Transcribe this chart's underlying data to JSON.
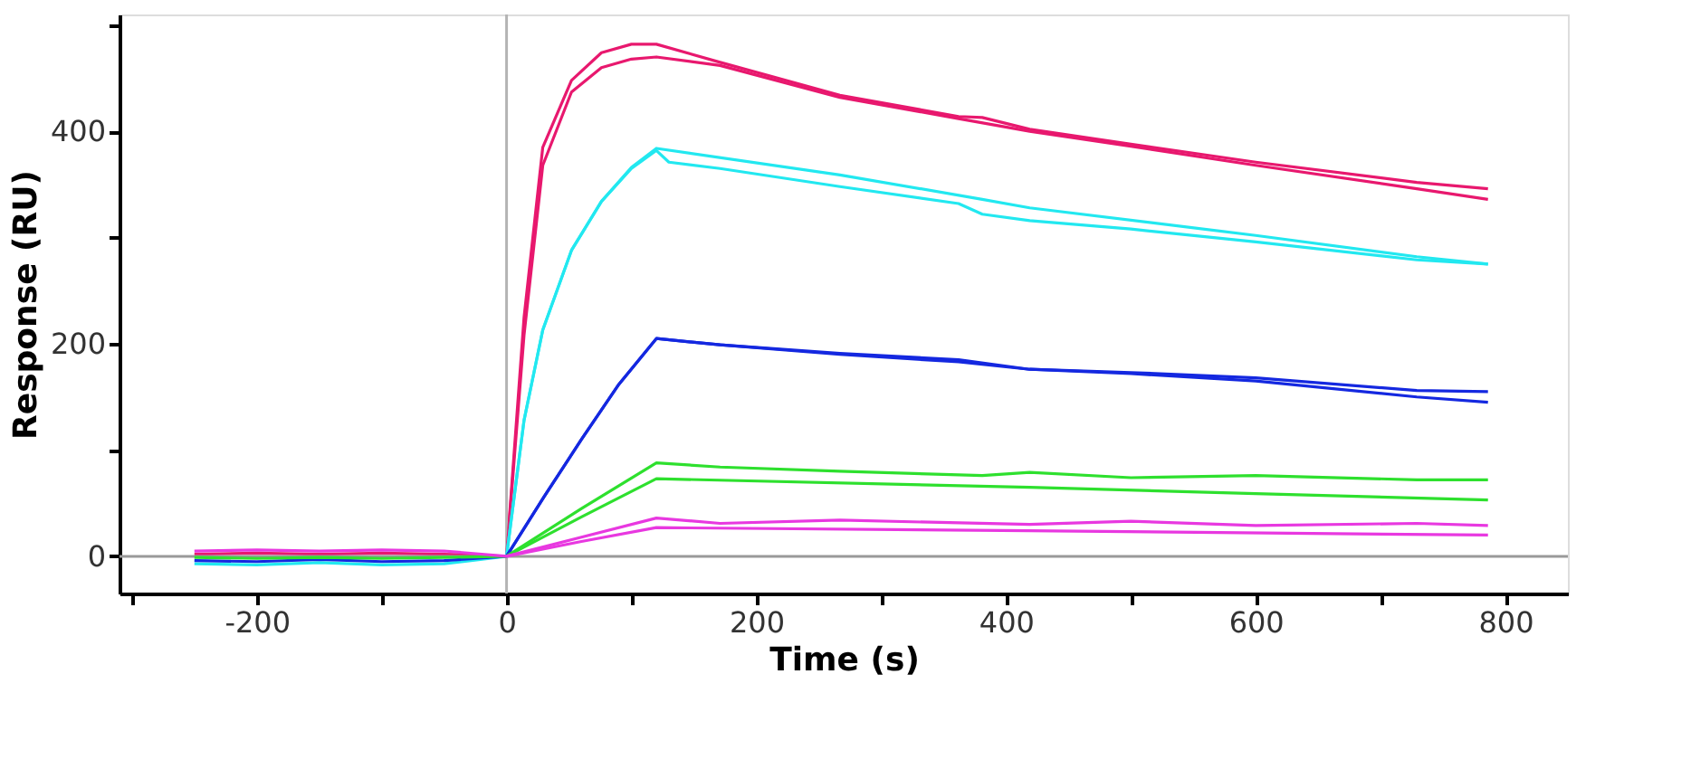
{
  "chart_data": {
    "type": "line",
    "xlabel": "Time (s)",
    "ylabel": "Response (RU)",
    "xlim": [
      -310,
      850
    ],
    "ylim": [
      -35,
      510
    ],
    "xticks": [
      {
        "value": -300,
        "label": null
      },
      -200,
      {
        "value": -100,
        "label": null
      },
      0,
      {
        "value": 100,
        "label": null
      },
      200,
      {
        "value": 300,
        "label": null
      },
      400,
      {
        "value": 500,
        "label": null
      },
      600,
      {
        "value": 700,
        "label": null
      },
      800
    ],
    "yticks": [
      0,
      {
        "value": 100,
        "label": null
      },
      200,
      {
        "value": 300,
        "label": null
      },
      400,
      {
        "value": 500,
        "label": null
      }
    ],
    "grid": false,
    "marker": "none",
    "line_style": "solid",
    "ref_lines": [
      {
        "axis": "x",
        "value": 0,
        "label": null,
        "color": "#b4b4b4"
      },
      {
        "axis": "y",
        "value": 0,
        "label": null,
        "color": "#999999"
      }
    ],
    "series": [
      {
        "color": "#e8186e",
        "x": [
          -250,
          -200,
          -150,
          -100,
          -50,
          0,
          14,
          29,
          52,
          76,
          100,
          120,
          171,
          267,
          362,
          381,
          419,
          500,
          600,
          729,
          786
        ],
        "values": [
          2,
          3,
          2,
          3,
          2,
          0,
          225,
          385,
          448,
          474,
          482,
          482,
          465,
          434,
          414,
          413,
          402,
          388,
          371,
          352,
          346
        ]
      },
      {
        "color": "#e8186e",
        "x": [
          0,
          14,
          29,
          52,
          76,
          100,
          120,
          171,
          267,
          362,
          419,
          500,
          600,
          729,
          786
        ],
        "values": [
          0,
          208,
          368,
          437,
          460,
          468,
          470,
          462,
          432,
          412,
          400,
          386,
          368,
          346,
          336
        ]
      },
      {
        "color": "#22e8f0",
        "x": [
          -250,
          -200,
          -150,
          -100,
          -50,
          0,
          14,
          29,
          52,
          76,
          100,
          120,
          130,
          171,
          267,
          362,
          381,
          419,
          500,
          600,
          729,
          786
        ],
        "values": [
          -7,
          -8,
          -6,
          -8,
          -7,
          0,
          128,
          213,
          288,
          334,
          365,
          382,
          371,
          365,
          348,
          332,
          322,
          316,
          308,
          296,
          279,
          275
        ]
      },
      {
        "color": "#22e8f0",
        "x": [
          0,
          14,
          29,
          52,
          76,
          100,
          120,
          267,
          381,
          419,
          600,
          729,
          786
        ],
        "values": [
          0,
          128,
          213,
          288,
          334,
          366,
          384,
          359,
          336,
          328,
          302,
          282,
          275
        ]
      },
      {
        "color": "#1428e0",
        "x": [
          -250,
          -200,
          -150,
          -100,
          -50,
          0,
          30,
          60,
          90,
          120,
          171,
          267,
          362,
          419,
          500,
          600,
          729,
          786
        ],
        "values": [
          -4,
          -5,
          -3,
          -5,
          -4,
          0,
          56,
          110,
          162,
          205,
          199,
          191,
          185,
          176,
          173,
          168,
          156,
          155
        ]
      },
      {
        "color": "#1428e0",
        "x": [
          0,
          30,
          60,
          90,
          120,
          171,
          267,
          362,
          419,
          500,
          600,
          729,
          786
        ],
        "values": [
          0,
          56,
          110,
          162,
          205,
          199,
          190,
          183,
          176,
          172,
          165,
          150,
          145
        ]
      },
      {
        "color": "#2ee02e",
        "x": [
          -250,
          -200,
          -150,
          -100,
          -50,
          0,
          60,
          120,
          171,
          267,
          381,
          419,
          500,
          600,
          729,
          786
        ],
        "values": [
          -1,
          -2,
          -1,
          -2,
          -1,
          0,
          45,
          88,
          84,
          80,
          76,
          79,
          74,
          76,
          72,
          72
        ]
      },
      {
        "color": "#2ee02e",
        "x": [
          0,
          60,
          120,
          419,
          600,
          786
        ],
        "values": [
          0,
          37,
          73,
          65,
          59,
          53
        ]
      },
      {
        "color": "#e838e0",
        "x": [
          -250,
          -200,
          -150,
          -100,
          -50,
          0,
          60,
          120,
          171,
          267,
          419,
          500,
          600,
          729,
          786
        ],
        "values": [
          5,
          6,
          5,
          6,
          5,
          0,
          18,
          36,
          31,
          34,
          30,
          33,
          29,
          31,
          29
        ]
      },
      {
        "color": "#e838e0",
        "x": [
          0,
          60,
          120,
          419,
          786
        ],
        "values": [
          0,
          14,
          27,
          24,
          20
        ]
      }
    ]
  }
}
